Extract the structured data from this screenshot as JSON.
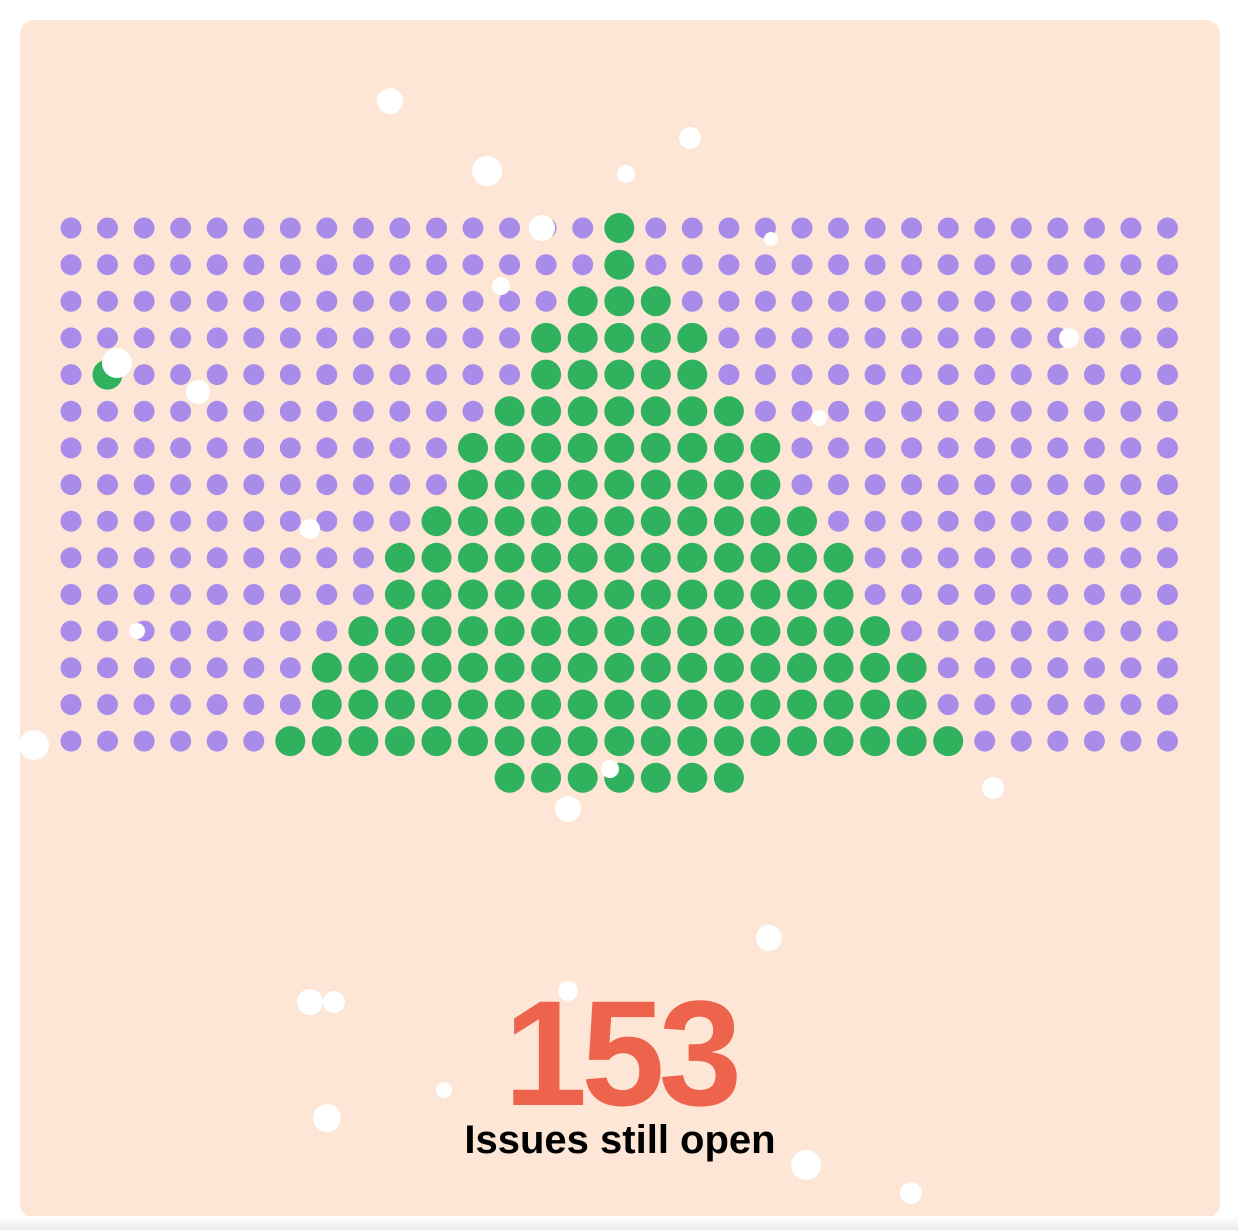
{
  "chart_data": {
    "type": "dot-matrix",
    "rows": 16,
    "cols": 31,
    "total_dots": 472,
    "highlighted_dots": 153,
    "grid": [
      "...............................",
      "...............................",
      "...............................",
      "...............................",
      "...............................",
      "...............................",
      "...............................",
      "...............................",
      "...............................",
      "...............................",
      "...............................",
      "...............................",
      "...............................",
      "...............................",
      "...............................",
      "......#######.................."
    ],
    "shape_rows": [
      [
        15
      ],
      [
        15
      ],
      [
        14,
        15,
        16
      ],
      [
        13,
        14,
        15,
        16,
        17
      ],
      [
        1,
        13,
        14,
        15,
        16,
        17
      ],
      [
        12,
        13,
        14,
        15,
        16,
        17,
        18
      ],
      [
        11,
        12,
        13,
        14,
        15,
        16,
        17,
        18,
        19
      ],
      [
        11,
        12,
        13,
        14,
        15,
        16,
        17,
        18,
        19
      ],
      [
        10,
        11,
        12,
        13,
        14,
        15,
        16,
        17,
        18,
        19,
        20
      ],
      [
        9,
        10,
        11,
        12,
        13,
        14,
        15,
        16,
        17,
        18,
        19,
        20,
        21
      ],
      [
        9,
        10,
        11,
        12,
        13,
        14,
        15,
        16,
        17,
        18,
        19,
        20,
        21
      ],
      [
        8,
        9,
        10,
        11,
        12,
        13,
        14,
        15,
        16,
        17,
        18,
        19,
        20,
        21,
        22
      ],
      [
        7,
        8,
        9,
        10,
        11,
        12,
        13,
        14,
        15,
        16,
        17,
        18,
        19,
        20,
        21,
        22,
        23
      ],
      [
        7,
        8,
        9,
        10,
        11,
        12,
        13,
        14,
        15,
        16,
        17,
        18,
        19,
        20,
        21,
        22,
        23
      ],
      [
        6,
        7,
        8,
        9,
        10,
        11,
        12,
        13,
        14,
        15,
        16,
        17,
        18,
        19,
        20,
        21,
        22,
        23,
        24
      ],
      [
        12,
        13,
        14,
        15,
        16,
        17,
        18
      ]
    ],
    "purple_rows": 15,
    "colors": {
      "background": "#fde6d6",
      "dot": "#a98be9",
      "highlight": "#2fb15e",
      "snow": "#ffffff",
      "number": "#ee634b"
    }
  },
  "stat": {
    "value": "153",
    "label": "Issues still open"
  }
}
